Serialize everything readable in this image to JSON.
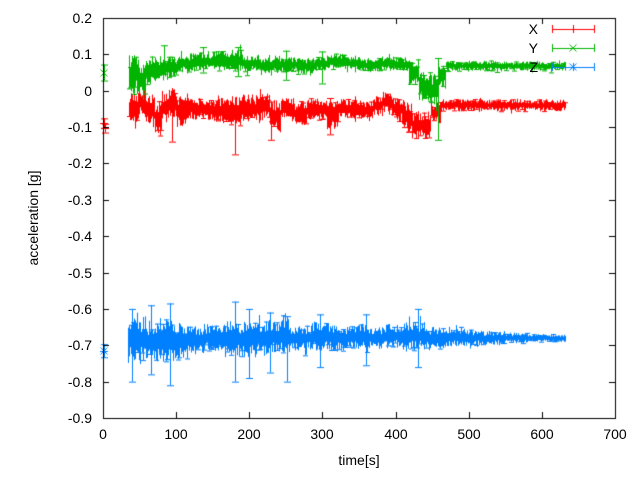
{
  "chart_data": {
    "type": "line",
    "subtype": "errorbars",
    "title": "",
    "xlabel": "time[s]",
    "ylabel": "acceleration [g]",
    "xlim": [
      0,
      700
    ],
    "ylim": [
      -0.9,
      0.2
    ],
    "grid": false,
    "legend_position": "top-right-inside",
    "background_color": "#ffffff",
    "axis_color": "#000000",
    "xticks": [
      0,
      100,
      200,
      300,
      400,
      500,
      600,
      700
    ],
    "xtick_labels": [
      "0",
      "100",
      "200",
      "300",
      "400",
      "500",
      "600",
      "700"
    ],
    "yticks": [
      -0.9,
      -0.8,
      -0.7,
      -0.6,
      -0.5,
      -0.4,
      -0.3,
      -0.2,
      -0.1,
      0,
      0.1,
      0.2
    ],
    "ytick_labels": [
      "-0.9",
      "-0.8",
      "-0.7",
      "-0.6",
      "-0.5",
      "-0.4",
      "-0.3",
      "-0.2",
      "-0.1",
      "0",
      "0.1",
      "0.2"
    ],
    "series": [
      {
        "name": "X",
        "color": "#ff0000",
        "marker": "plus",
        "isolated_points": [
          [
            1,
            -0.089,
            0.013
          ],
          [
            3,
            -0.103,
            0.012
          ]
        ],
        "band_segments": [
          [
            35,
            48,
            -0.05,
            0.055
          ],
          [
            48,
            58,
            -0.032,
            0.045
          ],
          [
            58,
            70,
            -0.05,
            0.04
          ],
          [
            70,
            80,
            -0.075,
            0.05
          ],
          [
            80,
            90,
            -0.045,
            0.045
          ],
          [
            90,
            100,
            -0.032,
            0.04
          ],
          [
            100,
            115,
            -0.055,
            0.045
          ],
          [
            115,
            150,
            -0.05,
            0.03
          ],
          [
            150,
            175,
            -0.055,
            0.035
          ],
          [
            175,
            190,
            -0.06,
            0.045
          ],
          [
            190,
            215,
            -0.05,
            0.04
          ],
          [
            215,
            228,
            -0.04,
            0.035
          ],
          [
            228,
            242,
            -0.07,
            0.045
          ],
          [
            242,
            262,
            -0.05,
            0.03
          ],
          [
            262,
            278,
            -0.065,
            0.04
          ],
          [
            278,
            305,
            -0.05,
            0.03
          ],
          [
            305,
            322,
            -0.065,
            0.04
          ],
          [
            322,
            352,
            -0.05,
            0.028
          ],
          [
            352,
            368,
            -0.055,
            0.032
          ],
          [
            368,
            382,
            -0.04,
            0.03
          ],
          [
            382,
            395,
            -0.03,
            0.03
          ],
          [
            395,
            408,
            -0.05,
            0.035
          ],
          [
            408,
            422,
            -0.07,
            0.045
          ],
          [
            422,
            448,
            -0.095,
            0.04
          ],
          [
            448,
            462,
            -0.06,
            0.03
          ],
          [
            462,
            632,
            -0.04,
            0.017
          ]
        ],
        "error_spikes": [
          [
            95,
            -0.14,
            -0.02
          ],
          [
            180,
            -0.175,
            -0.04
          ],
          [
            230,
            -0.135,
            -0.03
          ],
          [
            310,
            -0.12,
            -0.02
          ]
        ]
      },
      {
        "name": "Y",
        "color": "#00b400",
        "marker": "cross",
        "isolated_points": [
          [
            2,
            0.05,
            0.022
          ]
        ],
        "band_segments": [
          [
            35,
            50,
            0.045,
            0.055
          ],
          [
            50,
            58,
            0.03,
            0.05
          ],
          [
            58,
            70,
            0.055,
            0.04
          ],
          [
            70,
            85,
            0.06,
            0.035
          ],
          [
            85,
            100,
            0.065,
            0.03
          ],
          [
            100,
            125,
            0.075,
            0.028
          ],
          [
            125,
            150,
            0.08,
            0.025
          ],
          [
            150,
            175,
            0.082,
            0.028
          ],
          [
            175,
            190,
            0.085,
            0.03
          ],
          [
            190,
            215,
            0.075,
            0.025
          ],
          [
            215,
            240,
            0.07,
            0.022
          ],
          [
            240,
            265,
            0.072,
            0.02
          ],
          [
            265,
            290,
            0.068,
            0.022
          ],
          [
            290,
            310,
            0.075,
            0.022
          ],
          [
            310,
            330,
            0.08,
            0.022
          ],
          [
            330,
            355,
            0.075,
            0.02
          ],
          [
            355,
            380,
            0.07,
            0.02
          ],
          [
            380,
            400,
            0.075,
            0.02
          ],
          [
            400,
            418,
            0.072,
            0.02
          ],
          [
            418,
            432,
            0.05,
            0.035
          ],
          [
            432,
            448,
            0.012,
            0.04
          ],
          [
            448,
            458,
            0.002,
            0.045
          ],
          [
            458,
            468,
            0.04,
            0.035
          ],
          [
            468,
            632,
            0.068,
            0.013
          ]
        ],
        "error_spikes": [
          [
            83,
            0.05,
            0.125
          ],
          [
            137,
            0.05,
            0.12
          ],
          [
            185,
            0.04,
            0.12
          ],
          [
            250,
            0.03,
            0.11
          ],
          [
            300,
            0.02,
            0.108
          ],
          [
            458,
            -0.135,
            0.09
          ]
        ]
      },
      {
        "name": "Z",
        "color": "#0080ff",
        "marker": "asterisk",
        "isolated_points": [
          [
            2,
            -0.715,
            0.018
          ]
        ],
        "band_segments": [
          [
            33,
            60,
            -0.685,
            0.065
          ],
          [
            60,
            75,
            -0.69,
            0.06
          ],
          [
            75,
            95,
            -0.685,
            0.065
          ],
          [
            95,
            110,
            -0.69,
            0.055
          ],
          [
            110,
            140,
            -0.685,
            0.04
          ],
          [
            140,
            165,
            -0.68,
            0.035
          ],
          [
            165,
            185,
            -0.68,
            0.055
          ],
          [
            185,
            200,
            -0.685,
            0.05
          ],
          [
            200,
            230,
            -0.68,
            0.05
          ],
          [
            230,
            255,
            -0.675,
            0.045
          ],
          [
            255,
            285,
            -0.68,
            0.035
          ],
          [
            285,
            310,
            -0.675,
            0.04
          ],
          [
            310,
            335,
            -0.68,
            0.035
          ],
          [
            335,
            360,
            -0.675,
            0.035
          ],
          [
            360,
            385,
            -0.68,
            0.03
          ],
          [
            385,
            410,
            -0.675,
            0.033
          ],
          [
            410,
            440,
            -0.675,
            0.04
          ],
          [
            440,
            470,
            -0.68,
            0.03
          ],
          [
            470,
            505,
            -0.678,
            0.025
          ],
          [
            505,
            545,
            -0.68,
            0.02
          ],
          [
            545,
            580,
            -0.68,
            0.015
          ],
          [
            580,
            632,
            -0.68,
            0.011
          ]
        ],
        "error_spikes": [
          [
            40,
            -0.8,
            -0.6
          ],
          [
            65,
            -0.78,
            -0.59
          ],
          [
            92,
            -0.81,
            -0.585
          ],
          [
            180,
            -0.8,
            -0.58
          ],
          [
            200,
            -0.79,
            -0.6
          ],
          [
            228,
            -0.775,
            -0.61
          ],
          [
            252,
            -0.8,
            -0.62
          ],
          [
            297,
            -0.76,
            -0.615
          ],
          [
            360,
            -0.755,
            -0.615
          ],
          [
            430,
            -0.76,
            -0.6
          ]
        ]
      }
    ]
  }
}
